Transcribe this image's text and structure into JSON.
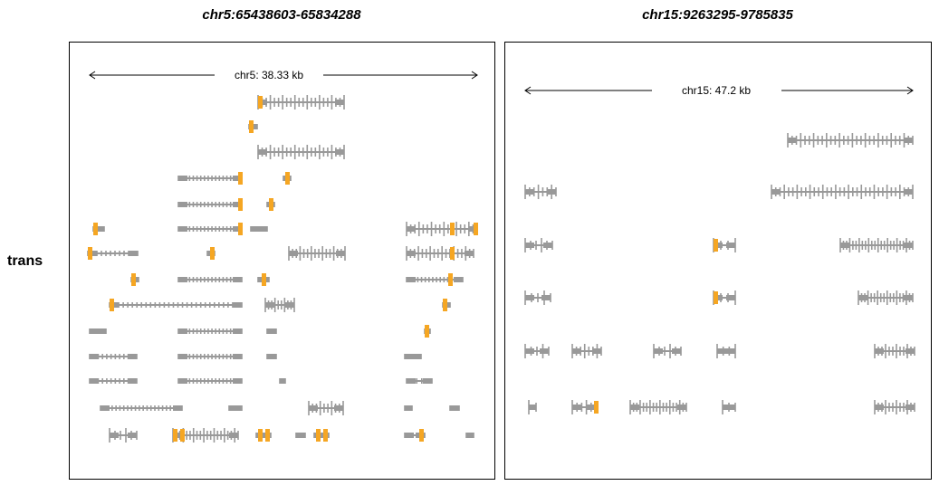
{
  "panels": {
    "left": {
      "title": "chr5:65438603-65834288",
      "scale_label": "chr5: 38.33 kb"
    },
    "right": {
      "title": "chr15:9263295-9785835",
      "scale_label": "chr15: 47.2 kb"
    }
  },
  "row_label": "trans",
  "colors": {
    "exon": "#999999",
    "intron": "#999999",
    "highlight": "#f5a623",
    "border": "#000000"
  }
}
